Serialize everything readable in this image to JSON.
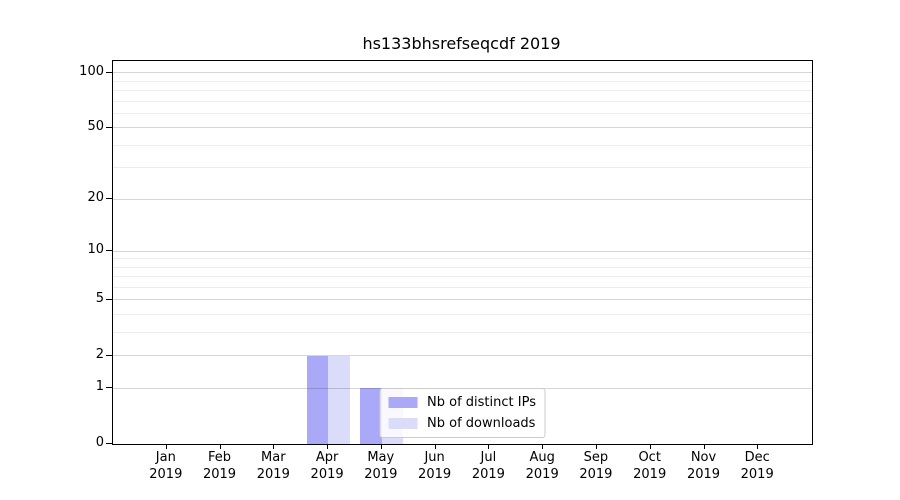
{
  "figure": {
    "background": "#ffffff"
  },
  "chart_data": {
    "type": "bar",
    "title": "hs133bhsrefseqcdf 2019",
    "categories": [
      "Jan",
      "Feb",
      "Mar",
      "Apr",
      "May",
      "Jun",
      "Jul",
      "Aug",
      "Sep",
      "Oct",
      "Nov",
      "Dec"
    ],
    "x_year_suffix": "2019",
    "series": [
      {
        "name": "Nb of distinct IPs",
        "color": "#a9a9f7",
        "values": [
          0,
          0,
          0,
          2,
          1,
          0,
          0,
          0,
          0,
          0,
          0,
          0
        ]
      },
      {
        "name": "Nb of downloads",
        "color": "#dbdbfa",
        "values": [
          0,
          0,
          0,
          2,
          1,
          0,
          0,
          0,
          0,
          0,
          0,
          0
        ]
      }
    ],
    "yscale": "log1p",
    "ylim": [
      0,
      116
    ],
    "yticks": [
      0,
      1,
      2,
      5,
      10,
      20,
      50,
      100
    ],
    "yticks_minor": [
      3,
      4,
      6,
      7,
      8,
      9,
      30,
      40,
      60,
      70,
      80,
      90
    ],
    "grid": {
      "which": "both",
      "axis": "y",
      "major_color": "#d6d6d6",
      "minor_color": "#ededed"
    },
    "legend": {
      "position": "lower center",
      "frame_color": "#cccccc",
      "frame_alpha": 0.8
    }
  }
}
